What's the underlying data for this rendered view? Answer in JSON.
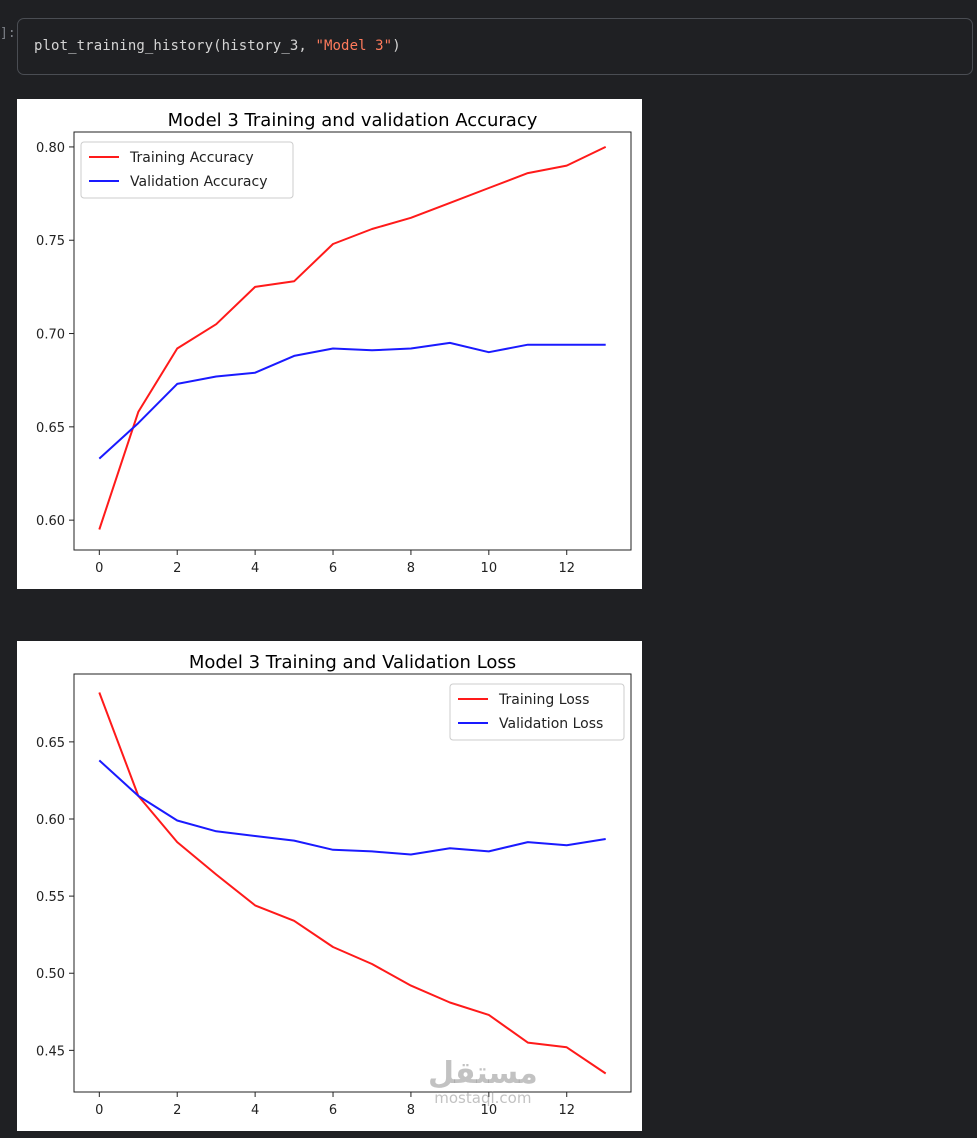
{
  "cell": {
    "prompt": "]:",
    "code_call": "plot_training_history(history_3, ",
    "code_string": "\"Model 3\"",
    "code_close": ")"
  },
  "colors": {
    "training": "#ff1a1a",
    "validation": "#1a1aff"
  },
  "watermark": {
    "arabic": "مستقل",
    "latin": "mostaql.com"
  },
  "chart_data": [
    {
      "type": "line",
      "title": "Model 3 Training and validation Accuracy",
      "xlabel": "",
      "ylabel": "",
      "x": [
        0,
        1,
        2,
        3,
        4,
        5,
        6,
        7,
        8,
        9,
        10,
        11,
        12,
        13
      ],
      "xlim": [
        -0.65,
        13.65
      ],
      "ylim": [
        0.584,
        0.808
      ],
      "xticks": [
        0,
        2,
        4,
        6,
        8,
        10,
        12
      ],
      "yticks": [
        0.6,
        0.65,
        0.7,
        0.75,
        0.8
      ],
      "ytick_labels": [
        "0.60",
        "0.65",
        "0.70",
        "0.75",
        "0.80"
      ],
      "legend_position": "top-left",
      "series": [
        {
          "name": "Training Accuracy",
          "color": "#ff1a1a",
          "values": [
            0.595,
            0.658,
            0.692,
            0.705,
            0.725,
            0.728,
            0.748,
            0.756,
            0.762,
            0.77,
            0.778,
            0.786,
            0.79,
            0.8
          ]
        },
        {
          "name": "Validation Accuracy",
          "color": "#1a1aff",
          "values": [
            0.633,
            0.652,
            0.673,
            0.677,
            0.679,
            0.688,
            0.692,
            0.691,
            0.692,
            0.695,
            0.69,
            0.694,
            0.694,
            0.694
          ]
        }
      ]
    },
    {
      "type": "line",
      "title": "Model 3 Training and Validation Loss",
      "xlabel": "",
      "ylabel": "",
      "x": [
        0,
        1,
        2,
        3,
        4,
        5,
        6,
        7,
        8,
        9,
        10,
        11,
        12,
        13
      ],
      "xlim": [
        -0.65,
        13.65
      ],
      "ylim": [
        0.423,
        0.694
      ],
      "xticks": [
        0,
        2,
        4,
        6,
        8,
        10,
        12
      ],
      "yticks": [
        0.45,
        0.5,
        0.55,
        0.6,
        0.65
      ],
      "ytick_labels": [
        "0.45",
        "0.50",
        "0.55",
        "0.60",
        "0.65"
      ],
      "legend_position": "top-right",
      "series": [
        {
          "name": "Training Loss",
          "color": "#ff1a1a",
          "values": [
            0.682,
            0.615,
            0.585,
            0.564,
            0.544,
            0.534,
            0.517,
            0.506,
            0.492,
            0.481,
            0.473,
            0.455,
            0.452,
            0.435
          ]
        },
        {
          "name": "Validation Loss",
          "color": "#1a1aff",
          "values": [
            0.638,
            0.615,
            0.599,
            0.592,
            0.589,
            0.586,
            0.58,
            0.579,
            0.577,
            0.581,
            0.579,
            0.585,
            0.583,
            0.587
          ]
        }
      ]
    }
  ]
}
